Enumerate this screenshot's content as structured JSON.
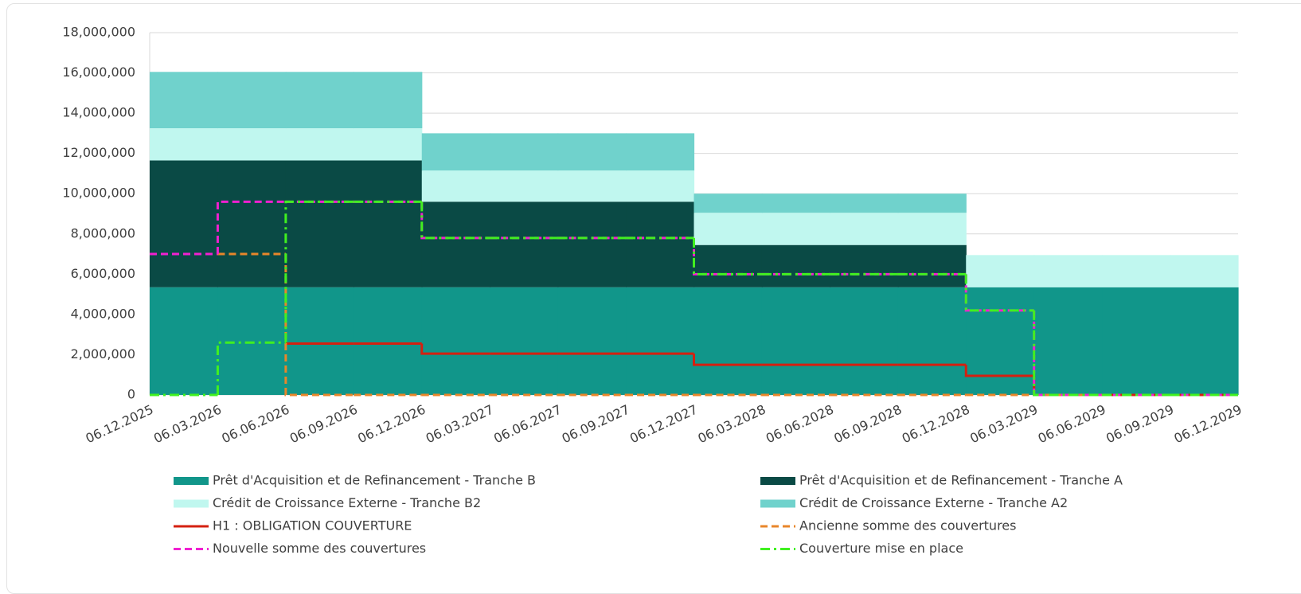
{
  "chart_data": {
    "type": "step",
    "categories": [
      "06.12.2025",
      "06.03.2026",
      "06.06.2026",
      "06.09.2026",
      "06.12.2026",
      "06.03.2027",
      "06.06.2027",
      "06.09.2027",
      "06.12.2027",
      "06.03.2028",
      "06.06.2028",
      "06.09.2028",
      "06.12.2028",
      "06.03.2029",
      "06.06.2029",
      "06.09.2029",
      "06.12.2029"
    ],
    "ylim": [
      0,
      18000000
    ],
    "yticks": [
      0,
      {
        "value": 2000000,
        "label": "2,000,000"
      },
      {
        "value": 4000000,
        "label": "4,000,000"
      },
      {
        "value": 6000000,
        "label": "6,000,000"
      },
      {
        "value": 8000000,
        "label": "8,000,000"
      },
      {
        "value": 10000000,
        "label": "10,000,000"
      },
      {
        "value": 12000000,
        "label": "12,000,000"
      },
      {
        "value": 14000000,
        "label": "14,000,000"
      },
      {
        "value": 16000000,
        "label": "16,000,000"
      },
      {
        "value": 18000000,
        "label": "18,000,000"
      }
    ],
    "grid": true,
    "series": [
      {
        "name": "Prêt d'Acquisition et de Refinancement - Tranche B",
        "kind": "area",
        "color": "#11968a",
        "values": [
          5350000,
          5350000,
          5350000,
          5350000,
          5350000,
          5350000,
          5350000,
          5350000,
          5350000,
          5350000,
          5350000,
          5350000,
          5350000,
          5350000,
          5350000,
          5350000,
          5350000
        ]
      },
      {
        "name": "Prêt d'Acquisition et de Refinancement - Tranche A",
        "kind": "area",
        "color": "#0a4a45",
        "values": [
          6300000,
          6300000,
          6300000,
          6300000,
          4250000,
          4250000,
          4250000,
          4250000,
          2100000,
          2100000,
          2100000,
          2100000,
          0,
          0,
          0,
          0,
          0
        ]
      },
      {
        "name": "Crédit de Croissance Externe - Tranche B2",
        "kind": "area",
        "color": "#c0f7ef",
        "values": [
          1600000,
          1600000,
          1600000,
          1600000,
          1550000,
          1550000,
          1550000,
          1550000,
          1600000,
          1600000,
          1600000,
          1600000,
          1600000,
          1600000,
          1600000,
          1600000,
          1600000
        ]
      },
      {
        "name": "Crédit de Croissance Externe - Tranche A2",
        "kind": "area",
        "color": "#70d2cc",
        "values": [
          2800000,
          2800000,
          2800000,
          2800000,
          1850000,
          1850000,
          1850000,
          1850000,
          950000,
          950000,
          950000,
          950000,
          0,
          0,
          0,
          0,
          0
        ]
      },
      {
        "name": "H1 : OBLIGATION COUVERTURE",
        "kind": "line",
        "dash": "solid",
        "color": "#d42010",
        "values": [
          null,
          null,
          2550000,
          2550000,
          2050000,
          2050000,
          2050000,
          2050000,
          1500000,
          1500000,
          1500000,
          1500000,
          950000,
          0,
          0,
          0,
          0
        ]
      },
      {
        "name": "Ancienne somme des couvertures",
        "kind": "line",
        "dash": "dashed",
        "color": "#e8862a",
        "values": [
          7000000,
          7000000,
          0,
          0,
          0,
          0,
          0,
          0,
          0,
          0,
          0,
          0,
          0,
          0,
          0,
          0,
          0
        ]
      },
      {
        "name": "Nouvelle somme des couvertures",
        "kind": "line",
        "dash": "dashed",
        "color": "#f020d0",
        "values": [
          7000000,
          9600000,
          9600000,
          9600000,
          7800000,
          7800000,
          7800000,
          7800000,
          6000000,
          6000000,
          6000000,
          6000000,
          4200000,
          0,
          0,
          0,
          0
        ]
      },
      {
        "name": "Couverture mise en place",
        "kind": "line",
        "dash": "dashdot",
        "color": "#40f020",
        "values": [
          0,
          2600000,
          9600000,
          9600000,
          7800000,
          7800000,
          7800000,
          7800000,
          6000000,
          6000000,
          6000000,
          6000000,
          4200000,
          0,
          0,
          0,
          0
        ]
      }
    ]
  }
}
